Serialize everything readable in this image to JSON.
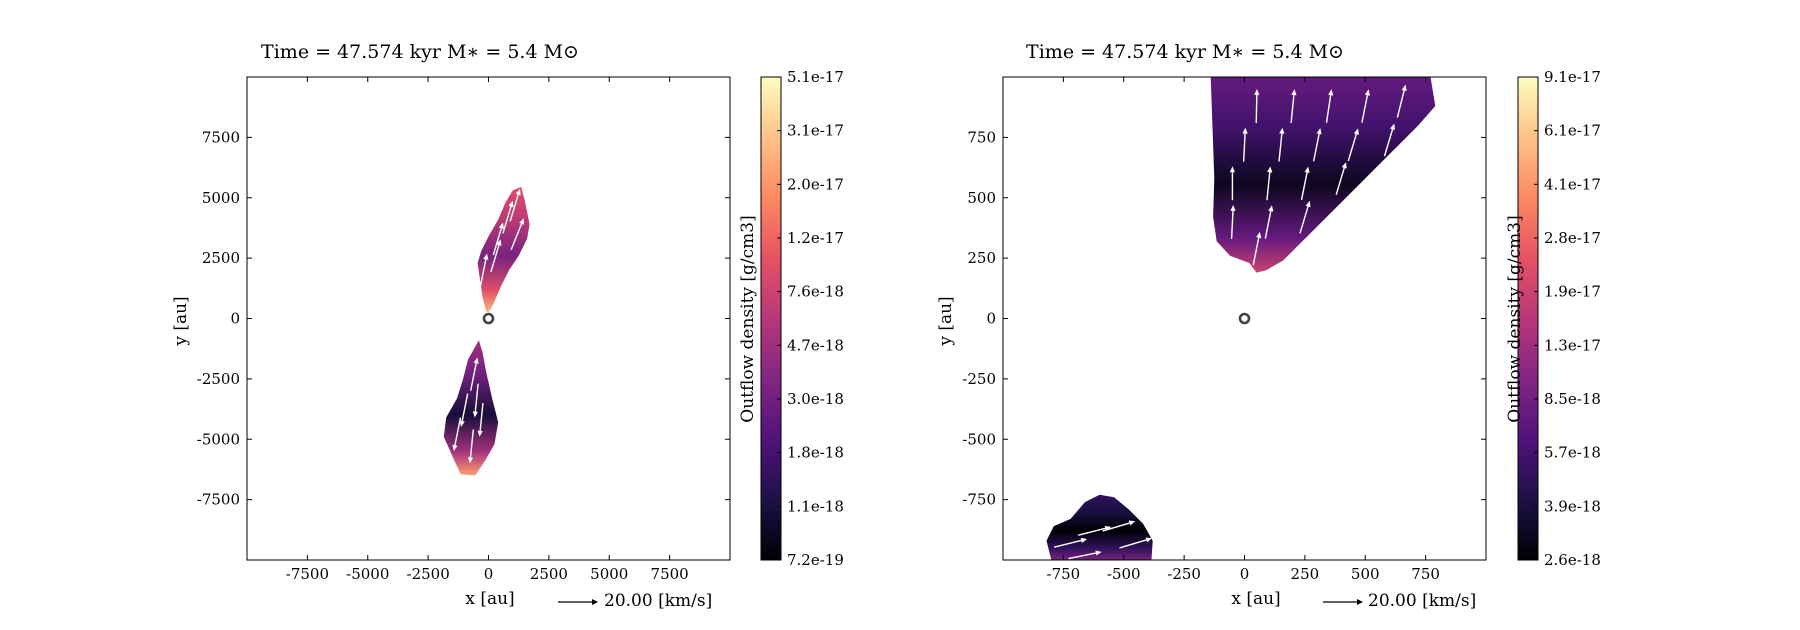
{
  "colormap": [
    "#000004",
    "#1d1147",
    "#51127c",
    "#822681",
    "#b73779",
    "#e75263",
    "#fc8961",
    "#fec287",
    "#fcfdbf"
  ],
  "arrow_color": "#ffffff",
  "star_marker_color": "#444444",
  "chart_data": [
    {
      "type": "heatmap",
      "title": "Time = 47.574 kyr    M∗ = 5.4 M⊙",
      "xlabel": "x [au]",
      "ylabel": "y [au]",
      "xlim": [
        -10000,
        10000
      ],
      "ylim": [
        -10000,
        10000
      ],
      "xticks": [
        -7500,
        -5000,
        -2500,
        0,
        2500,
        5000,
        7500
      ],
      "yticks": [
        -7500,
        -5000,
        -2500,
        0,
        2500,
        5000,
        7500
      ],
      "quiver_key": "20.00 [km/s]",
      "colorbar": {
        "label": "Outflow density [g/cm3]",
        "ticks": [
          "7.2e-19",
          "1.1e-18",
          "1.8e-18",
          "3.0e-18",
          "4.7e-18",
          "7.6e-18",
          "1.2e-17",
          "2.0e-17",
          "3.1e-17",
          "5.1e-17"
        ]
      },
      "star_position": [
        0,
        0
      ],
      "regions": [
        {
          "outline": [
            [
              -100,
              300
            ],
            [
              -250,
              900
            ],
            [
              -350,
              1600
            ],
            [
              -450,
              2300
            ],
            [
              -300,
              2800
            ],
            [
              0,
              3400
            ],
            [
              400,
              4100
            ],
            [
              700,
              4800
            ],
            [
              1000,
              5300
            ],
            [
              1350,
              5450
            ],
            [
              1500,
              4900
            ],
            [
              1700,
              3900
            ],
            [
              1600,
              3300
            ],
            [
              1250,
              2600
            ],
            [
              850,
              2000
            ],
            [
              500,
              1300
            ],
            [
              200,
              600
            ],
            [
              0,
              250
            ]
          ],
          "density_low": 0.35,
          "density_high": 0.85
        },
        {
          "outline": [
            [
              -400,
              -900
            ],
            [
              -850,
              -1700
            ],
            [
              -1050,
              -2500
            ],
            [
              -1300,
              -3300
            ],
            [
              -1750,
              -4100
            ],
            [
              -1850,
              -4900
            ],
            [
              -1450,
              -5800
            ],
            [
              -1150,
              -6450
            ],
            [
              -550,
              -6500
            ],
            [
              -150,
              -5900
            ],
            [
              250,
              -5200
            ],
            [
              400,
              -4300
            ],
            [
              150,
              -3300
            ],
            [
              -100,
              -2200
            ],
            [
              -250,
              -1400
            ]
          ],
          "density_low": 0.1,
          "density_high": 0.8
        }
      ],
      "arrows": [
        [
          400,
          3300,
          0.3,
          1.0
        ],
        [
          800,
          4200,
          0.3,
          1.0
        ],
        [
          1100,
          4700,
          0.3,
          1.0
        ],
        [
          -200,
          2000,
          0.2,
          1.0
        ],
        [
          300,
          2600,
          0.3,
          1.0
        ],
        [
          1200,
          3500,
          0.4,
          1.0
        ],
        [
          -600,
          -2300,
          0.2,
          1.0
        ],
        [
          -500,
          -3400,
          -0.1,
          -1.0
        ],
        [
          -1000,
          -3800,
          -0.2,
          -1.0
        ],
        [
          -300,
          -4200,
          -0.1,
          -1.0
        ],
        [
          -1300,
          -4800,
          -0.2,
          -1.0
        ],
        [
          -700,
          -5300,
          -0.1,
          -1.0
        ]
      ]
    },
    {
      "type": "heatmap",
      "title": "Time = 47.574 kyr    M∗ = 5.4 M⊙",
      "xlabel": "x [au]",
      "ylabel": "y [au]",
      "xlim": [
        -1000,
        1000
      ],
      "ylim": [
        -1000,
        1000
      ],
      "xticks": [
        -750,
        -500,
        -250,
        0,
        250,
        500,
        750
      ],
      "yticks": [
        -750,
        -500,
        -250,
        0,
        250,
        500,
        750
      ],
      "quiver_key": "20.00 [km/s]",
      "colorbar": {
        "label": "Outflow density [g/cm3]",
        "ticks": [
          "2.6e-18",
          "3.9e-18",
          "5.7e-18",
          "8.5e-18",
          "1.3e-17",
          "1.9e-17",
          "2.8e-17",
          "4.1e-17",
          "6.1e-17",
          "9.1e-17"
        ]
      },
      "star_position": [
        0,
        0
      ],
      "regions": [
        {
          "outline": [
            [
              -140,
              1000
            ],
            [
              -135,
              860
            ],
            [
              -130,
              720
            ],
            [
              -125,
              580
            ],
            [
              -130,
              420
            ],
            [
              -115,
              320
            ],
            [
              -60,
              260
            ],
            [
              20,
              230
            ],
            [
              50,
              190
            ],
            [
              90,
              200
            ],
            [
              160,
              240
            ],
            [
              230,
              310
            ],
            [
              330,
              410
            ],
            [
              460,
              540
            ],
            [
              600,
              680
            ],
            [
              720,
              800
            ],
            [
              790,
              880
            ],
            [
              770,
              1000
            ]
          ],
          "density_low": 0.05,
          "density_high": 0.55
        },
        {
          "outline": [
            [
              -800,
              -1000
            ],
            [
              -820,
              -920
            ],
            [
              -790,
              -860
            ],
            [
              -720,
              -830
            ],
            [
              -660,
              -760
            ],
            [
              -600,
              -730
            ],
            [
              -540,
              -740
            ],
            [
              -480,
              -790
            ],
            [
              -420,
              -850
            ],
            [
              -380,
              -920
            ],
            [
              -385,
              -1000
            ]
          ],
          "density_low": 0.0,
          "density_high": 0.35
        }
      ],
      "arrows": [
        [
          50,
          880,
          0.02,
          1.0
        ],
        [
          200,
          880,
          0.1,
          1.0
        ],
        [
          350,
          880,
          0.15,
          1.0
        ],
        [
          500,
          880,
          0.2,
          1.0
        ],
        [
          650,
          900,
          0.25,
          1.0
        ],
        [
          0,
          720,
          0.05,
          1.0
        ],
        [
          150,
          720,
          0.1,
          1.0
        ],
        [
          300,
          720,
          0.2,
          1.0
        ],
        [
          450,
          720,
          0.3,
          1.0
        ],
        [
          600,
          740,
          0.3,
          1.0
        ],
        [
          -50,
          560,
          0.0,
          1.0
        ],
        [
          100,
          560,
          0.1,
          1.0
        ],
        [
          250,
          560,
          0.2,
          1.0
        ],
        [
          400,
          580,
          0.3,
          1.0
        ],
        [
          -50,
          400,
          0.05,
          1.0
        ],
        [
          100,
          400,
          0.2,
          1.0
        ],
        [
          250,
          420,
          0.3,
          1.0
        ],
        [
          50,
          290,
          0.2,
          1.0
        ],
        [
          -720,
          -930,
          1.0,
          0.25
        ],
        [
          -620,
          -880,
          1.0,
          0.25
        ],
        [
          -520,
          -860,
          1.0,
          0.3
        ],
        [
          -450,
          -930,
          1.0,
          0.3
        ],
        [
          -660,
          -980,
          1.0,
          0.2
        ]
      ]
    }
  ]
}
